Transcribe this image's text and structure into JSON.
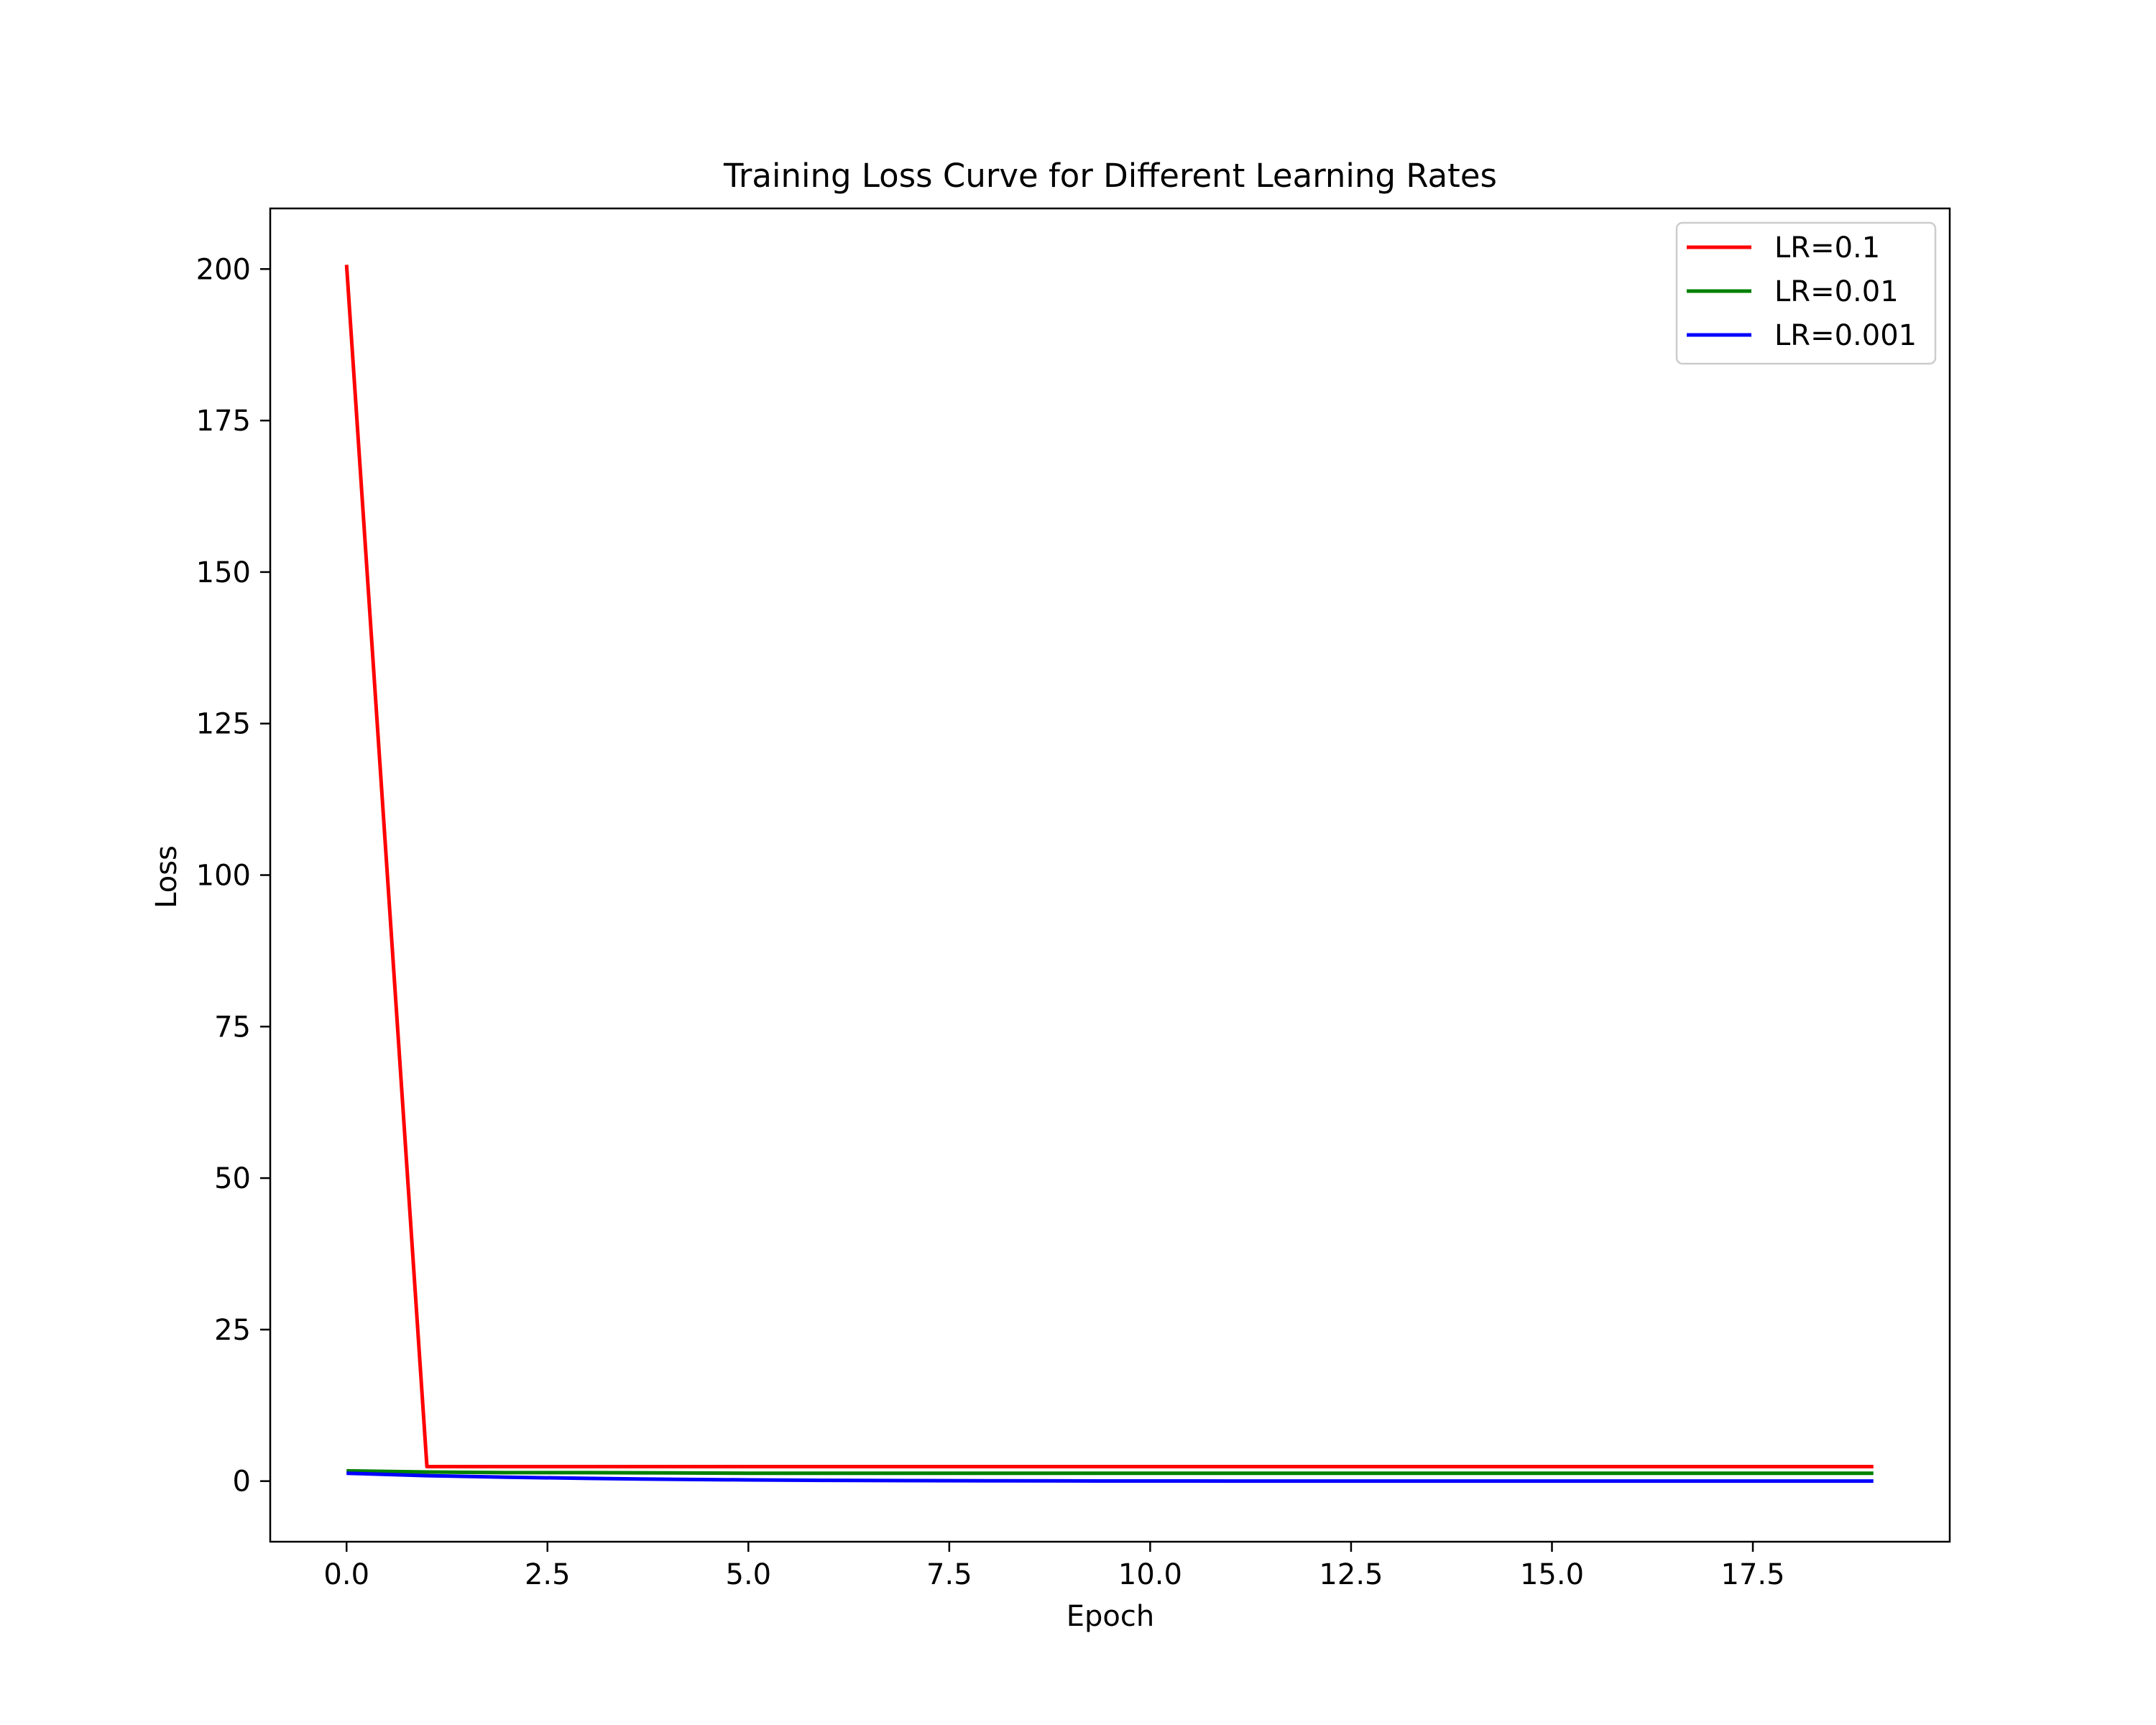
{
  "chart_data": {
    "type": "line",
    "title": "Training Loss Curve for Different Learning Rates",
    "xlabel": "Epoch",
    "ylabel": "Loss",
    "xlim": [
      -0.95,
      19.95
    ],
    "ylim": [
      -10,
      210
    ],
    "xticks": [
      0.0,
      2.5,
      5.0,
      7.5,
      10.0,
      12.5,
      15.0,
      17.5
    ],
    "xtick_labels": [
      "0.0",
      "2.5",
      "5.0",
      "7.5",
      "10.0",
      "12.5",
      "15.0",
      "17.5"
    ],
    "yticks": [
      0,
      25,
      50,
      75,
      100,
      125,
      150,
      175,
      200
    ],
    "ytick_labels": [
      "0",
      "25",
      "50",
      "75",
      "100",
      "125",
      "150",
      "175",
      "200"
    ],
    "grid": false,
    "legend_position": "top-right",
    "x": [
      0,
      1,
      2,
      3,
      4,
      5,
      6,
      7,
      8,
      9,
      10,
      11,
      12,
      13,
      14,
      15,
      16,
      17,
      18,
      19
    ],
    "series": [
      {
        "name": "LR=0.1",
        "color": "#ff0000",
        "values": [
          200.7,
          2.4,
          2.4,
          2.4,
          2.4,
          2.4,
          2.4,
          2.4,
          2.4,
          2.4,
          2.4,
          2.4,
          2.4,
          2.4,
          2.4,
          2.4,
          2.4,
          2.4,
          2.4,
          2.4
        ]
      },
      {
        "name": "LR=0.01",
        "color": "#008000",
        "values": [
          1.7,
          1.5,
          1.4,
          1.4,
          1.35,
          1.3,
          1.3,
          1.3,
          1.3,
          1.3,
          1.3,
          1.3,
          1.3,
          1.3,
          1.3,
          1.3,
          1.3,
          1.3,
          1.3,
          1.3
        ]
      },
      {
        "name": "LR=0.001",
        "color": "#0000ff",
        "values": [
          1.3,
          0.9,
          0.65,
          0.45,
          0.3,
          0.2,
          0.12,
          0.08,
          0.05,
          0.03,
          0.02,
          0.01,
          0.01,
          0.0,
          0.0,
          0.0,
          0.0,
          0.0,
          0.0,
          0.0
        ]
      }
    ]
  }
}
